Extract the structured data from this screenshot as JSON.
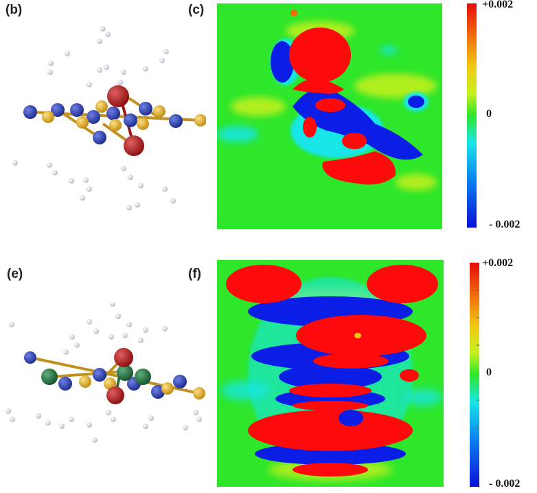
{
  "panels": {
    "b": "(b)",
    "c": "(c)",
    "e": "(e)",
    "f": "(f)"
  },
  "colorbar_top": {
    "max_label": "+0.002",
    "mid_label": "0",
    "min_label": "- 0.002"
  },
  "colorbar_bottom": {
    "max_label": "+0.002",
    "mid_label": "0",
    "min_label": "- 0.002"
  },
  "colors": {
    "background_field": "#2ee62a",
    "positive": "#ff0a0a",
    "negative": "#0a1ee6",
    "atom_n": "#1a2ea0",
    "atom_s": "#d9a41c",
    "atom_o": "#a01414",
    "atom_metal": "#1f6e3c",
    "atom_h": "#e8e8f0"
  },
  "colormap": [
    "#0a10d8",
    "#0a7af0",
    "#18e6e6",
    "#2ee62a",
    "#c8f01e",
    "#f0c814",
    "#f06a0a",
    "#e60a0a"
  ]
}
